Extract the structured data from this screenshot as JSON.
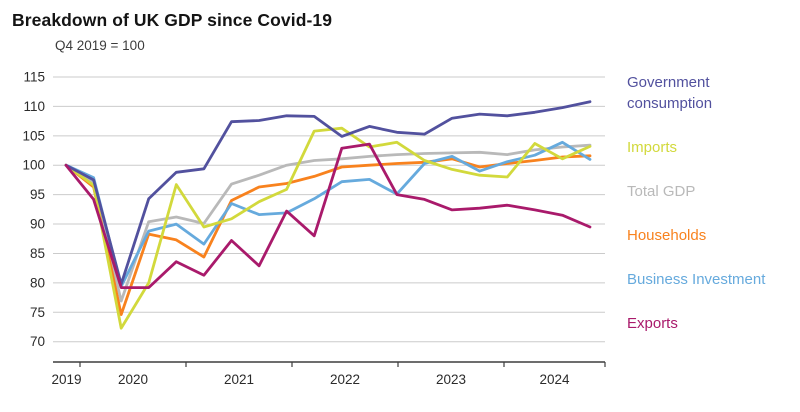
{
  "header": {
    "title": "Breakdown of UK GDP since Covid-19",
    "subtitle": "Q4 2019 = 100"
  },
  "chart_data": {
    "type": "line",
    "title": "Breakdown of UK GDP since Covid-19",
    "subtitle": "Q4 2019 = 100",
    "x_tick_labels": [
      "2019",
      "2020",
      "2021",
      "2022",
      "2023",
      "2024"
    ],
    "y_tick_labels": [
      115,
      110,
      105,
      100,
      95,
      90,
      85,
      80,
      75,
      70
    ],
    "ylim": [
      70,
      115
    ],
    "grid": true,
    "legend_position": "right",
    "quarters": [
      "Q4 2019",
      "Q1 2020",
      "Q2 2020",
      "Q3 2020",
      "Q4 2020",
      "Q1 2021",
      "Q2 2021",
      "Q3 2021",
      "Q4 2021",
      "Q1 2022",
      "Q2 2022",
      "Q3 2022",
      "Q4 2022",
      "Q1 2023",
      "Q2 2023",
      "Q3 2023",
      "Q4 2023",
      "Q1 2024",
      "Q2 2024",
      "Q3 2024"
    ],
    "z_order": [
      2,
      3,
      4,
      1,
      0,
      5
    ],
    "series": [
      {
        "name": "Government consumption",
        "color": "#52519e",
        "values": [
          100,
          97.5,
          79.8,
          94.3,
          98.8,
          99.4,
          107.4,
          107.6,
          108.4,
          108.3,
          104.9,
          106.6,
          105.6,
          105.3,
          108.0,
          108.7,
          108.4,
          109.0,
          109.8,
          110.8
        ]
      },
      {
        "name": "Imports",
        "color": "#d2d93c",
        "values": [
          100,
          96.6,
          72.3,
          80.0,
          96.7,
          89.5,
          90.9,
          93.8,
          95.9,
          105.8,
          106.3,
          103.1,
          103.9,
          100.8,
          99.3,
          98.3,
          98.0,
          103.7,
          101.1,
          103.2
        ]
      },
      {
        "name": "Total GDP",
        "color": "#b9b9b9",
        "values": [
          100,
          97.1,
          76.9,
          90.4,
          91.2,
          90.1,
          96.8,
          98.3,
          100.0,
          100.8,
          101.1,
          101.5,
          101.8,
          102.0,
          102.1,
          102.2,
          101.8,
          102.6,
          103.1,
          103.4
        ]
      },
      {
        "name": "Households",
        "color": "#f8821e",
        "values": [
          100,
          96.3,
          74.6,
          88.3,
          87.3,
          84.4,
          94.0,
          96.3,
          96.9,
          98.1,
          99.7,
          100.0,
          100.3,
          100.5,
          101.1,
          99.7,
          100.3,
          100.8,
          101.4,
          101.6
        ]
      },
      {
        "name": "Business Investment",
        "color": "#66aadd",
        "values": [
          100,
          97.9,
          79.4,
          88.8,
          90.0,
          86.6,
          93.5,
          91.6,
          91.9,
          94.3,
          97.2,
          97.6,
          95.1,
          100.3,
          101.5,
          99.0,
          100.6,
          101.7,
          103.9,
          101.0
        ]
      },
      {
        "name": "Exports",
        "color": "#a91a6b",
        "values": [
          100,
          94.2,
          79.2,
          79.2,
          83.6,
          81.3,
          87.2,
          82.9,
          92.2,
          88.0,
          102.9,
          103.6,
          95.0,
          94.2,
          92.4,
          92.7,
          93.2,
          92.4,
          91.5,
          89.5
        ]
      }
    ]
  },
  "legend": {
    "items": [
      {
        "label": "Government consumption",
        "color": "#52519e"
      },
      {
        "label": "Imports",
        "color": "#d2d93c"
      },
      {
        "label": "Total GDP",
        "color": "#b9b9b9"
      },
      {
        "label": "Households",
        "color": "#f8821e"
      },
      {
        "label": "Business Investment",
        "color": "#66aadd"
      },
      {
        "label": "Exports",
        "color": "#a91a6b"
      }
    ]
  },
  "colors": {
    "gridline": "#cbcbcb",
    "axis": "#3d3d3d",
    "tick_text": "#2b2b2b"
  }
}
